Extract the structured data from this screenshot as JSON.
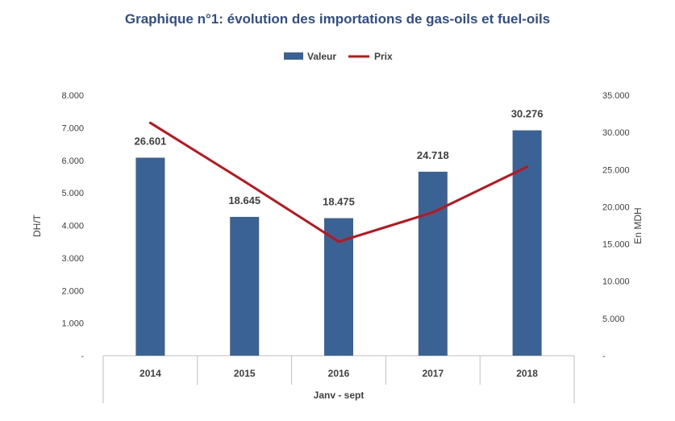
{
  "chart_data": {
    "type": "bar",
    "title": "Graphique n°1: évolution des importations de gas-oils et fuel-oils",
    "categories": [
      "2014",
      "2015",
      "2016",
      "2017",
      "2018"
    ],
    "xlabel": "Janv - sept",
    "series": [
      {
        "name": "Valeur",
        "type": "bar",
        "axis": "right",
        "values": [
          26.601,
          18.645,
          18.475,
          24.718,
          30.276
        ],
        "data_labels": [
          "26.601",
          "18.645",
          "18.475",
          "24.718",
          "30.276"
        ],
        "color": "#3A6295"
      },
      {
        "name": "Prix",
        "type": "line",
        "axis": "left",
        "values": [
          7.15,
          5.35,
          3.5,
          4.4,
          5.8
        ],
        "color": "#C0141C"
      }
    ],
    "left_axis": {
      "label": "DH/T",
      "ylim": [
        0,
        8
      ],
      "ticks": [
        0,
        1,
        2,
        3,
        4,
        5,
        6,
        7,
        8
      ],
      "tick_labels": [
        "-",
        "1.000",
        "2.000",
        "3.000",
        "4.000",
        "5.000",
        "6.000",
        "7.000",
        "8.000"
      ]
    },
    "right_axis": {
      "label": "En MDH",
      "ylim": [
        0,
        35
      ],
      "ticks": [
        0,
        5,
        10,
        15,
        20,
        25,
        30,
        35
      ],
      "tick_labels": [
        "-",
        "5.000",
        "10.000",
        "15.000",
        "20.000",
        "25.000",
        "30.000",
        "35.000"
      ]
    },
    "legend_position": "top-center",
    "grid": false
  }
}
